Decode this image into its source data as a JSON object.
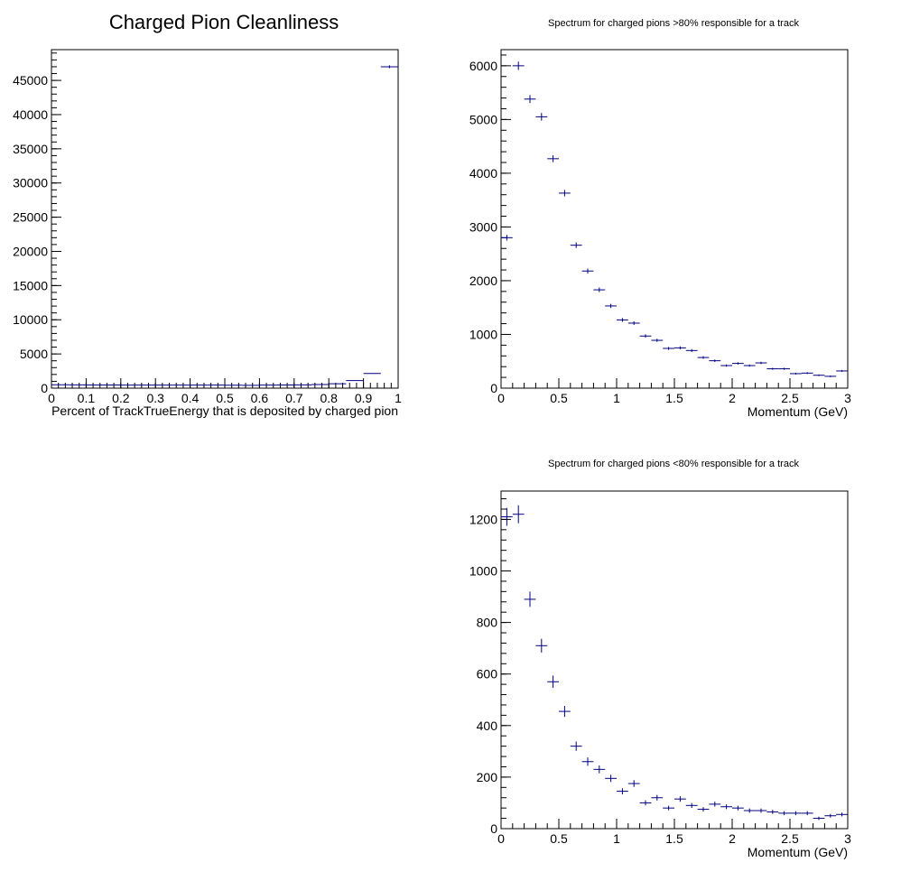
{
  "chart_data": [
    {
      "type": "histogram",
      "title": "Charged Pion Cleanliness",
      "xlabel": "Percent of TrackTrueEnergy that is deposited by charged pion",
      "ylabel": "",
      "xlim": [
        0,
        1
      ],
      "ylim": [
        0,
        49500
      ],
      "xticks": [
        "0",
        "0.1",
        "0.2",
        "0.3",
        "0.4",
        "0.5",
        "0.6",
        "0.7",
        "0.8",
        "0.9",
        "1"
      ],
      "yticks": [
        "0",
        "5000",
        "10000",
        "15000",
        "20000",
        "25000",
        "30000",
        "35000",
        "40000",
        "45000"
      ],
      "bin_width": 0.05,
      "x": [
        0.025,
        0.075,
        0.125,
        0.175,
        0.225,
        0.275,
        0.325,
        0.375,
        0.425,
        0.475,
        0.525,
        0.575,
        0.625,
        0.675,
        0.725,
        0.775,
        0.825,
        0.875,
        0.925,
        0.975
      ],
      "values": [
        500,
        480,
        470,
        460,
        450,
        450,
        450,
        450,
        440,
        440,
        430,
        420,
        450,
        470,
        480,
        520,
        650,
        1100,
        2150,
        47000
      ],
      "grid": false,
      "legend": "none"
    },
    {
      "type": "histogram",
      "title": "Spectrum for charged pions >80% responsible for a track",
      "xlabel": "Momentum (GeV)",
      "ylabel": "",
      "xlim": [
        0,
        3
      ],
      "ylim": [
        0,
        6300
      ],
      "xticks": [
        "0",
        "0.5",
        "1",
        "1.5",
        "2",
        "2.5",
        "3"
      ],
      "yticks": [
        "0",
        "1000",
        "2000",
        "3000",
        "4000",
        "5000",
        "6000"
      ],
      "bin_width": 0.1,
      "x": [
        0.05,
        0.15,
        0.25,
        0.35,
        0.45,
        0.55,
        0.65,
        0.75,
        0.85,
        0.95,
        1.05,
        1.15,
        1.25,
        1.35,
        1.45,
        1.55,
        1.65,
        1.75,
        1.85,
        1.95,
        2.05,
        2.15,
        2.25,
        2.35,
        2.45,
        2.55,
        2.65,
        2.75,
        2.85,
        2.95
      ],
      "values": [
        2800,
        6000,
        5380,
        5050,
        4270,
        3630,
        2660,
        2180,
        1830,
        1530,
        1270,
        1210,
        970,
        890,
        740,
        750,
        700,
        570,
        510,
        420,
        460,
        420,
        470,
        360,
        360,
        270,
        280,
        240,
        220,
        320
      ],
      "grid": false,
      "legend": "none"
    },
    {
      "type": "histogram",
      "title": "Spectrum for charged pions <80% responsible for a track",
      "xlabel": "Momentum (GeV)",
      "ylabel": "",
      "xlim": [
        0,
        3
      ],
      "ylim": [
        0,
        1310
      ],
      "xticks": [
        "0",
        "0.5",
        "1",
        "1.5",
        "2",
        "2.5",
        "3"
      ],
      "yticks": [
        "0",
        "200",
        "400",
        "600",
        "800",
        "1000",
        "1200"
      ],
      "bin_width": 0.1,
      "x": [
        0.05,
        0.15,
        0.25,
        0.35,
        0.45,
        0.55,
        0.65,
        0.75,
        0.85,
        0.95,
        1.05,
        1.15,
        1.25,
        1.35,
        1.45,
        1.55,
        1.65,
        1.75,
        1.85,
        1.95,
        2.05,
        2.15,
        2.25,
        2.35,
        2.45,
        2.55,
        2.65,
        2.75,
        2.85,
        2.95
      ],
      "values": [
        1210,
        1220,
        890,
        710,
        570,
        455,
        320,
        260,
        230,
        195,
        145,
        175,
        100,
        120,
        80,
        115,
        90,
        75,
        95,
        85,
        80,
        70,
        70,
        65,
        60,
        60,
        60,
        40,
        50,
        55
      ],
      "grid": false,
      "legend": "none"
    }
  ]
}
